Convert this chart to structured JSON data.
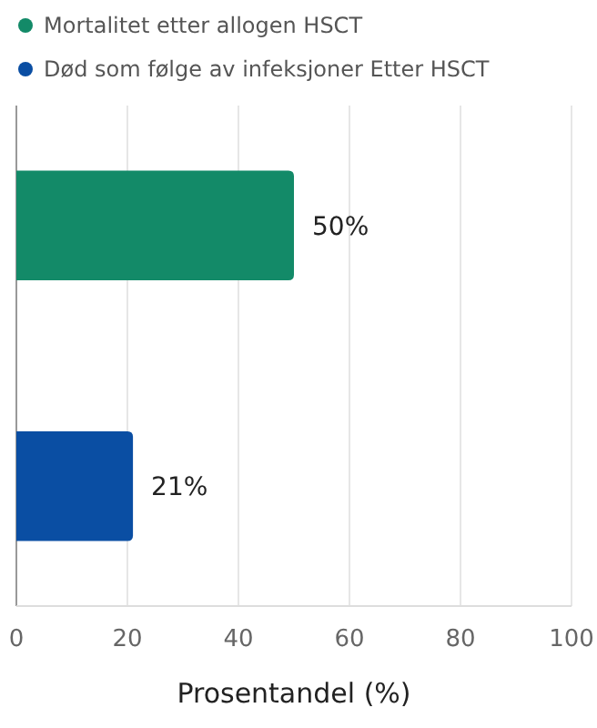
{
  "chart_data": {
    "type": "bar",
    "orientation": "horizontal",
    "categories": [
      null,
      null
    ],
    "series": [
      {
        "name": "Mortalitet etter allogen HSCT",
        "color": "#138a68",
        "values": [
          50,
          null
        ],
        "value_labels": [
          "50%",
          null
        ]
      },
      {
        "name": "Død som følge av infeksjoner Etter HSCT",
        "color": "#0a4ea3",
        "values": [
          null,
          21
        ],
        "value_labels": [
          null,
          "21%"
        ]
      }
    ],
    "xlabel": "Prosentandel (%)",
    "xlim": [
      0,
      100
    ],
    "xticks": [
      0,
      20,
      40,
      60,
      80,
      100
    ],
    "grid": "x",
    "legend": "top left"
  }
}
